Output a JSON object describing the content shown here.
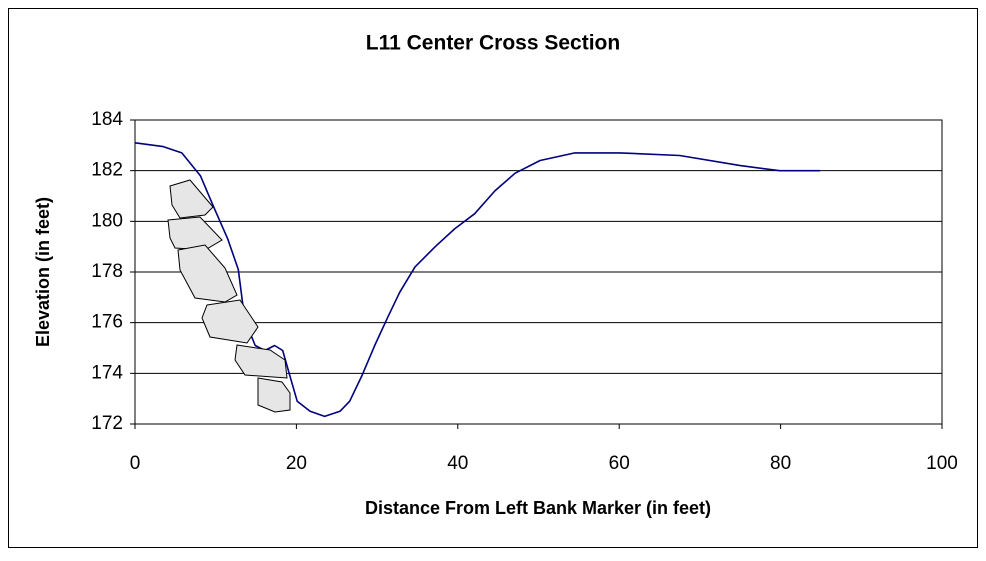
{
  "chart_data": {
    "type": "line",
    "title": "L11 Center Cross Section",
    "x_label": "Distance From Left Bank Marker (in feet)",
    "y_label": "Elevation (in feet)",
    "xlim": [
      0,
      100
    ],
    "xticks": [
      0,
      20,
      40,
      60,
      80,
      100
    ],
    "ylim": [
      172,
      184
    ],
    "yticks": [
      172,
      174,
      176,
      178,
      180,
      182,
      184
    ],
    "grid": true,
    "series": [
      {
        "color": "#000080",
        "x": [
          0,
          3.5,
          5.8,
          8.1,
          9.7,
          11.5,
          12.8,
          13.6,
          14.9,
          16.1,
          17.3,
          18.3,
          19.2,
          20.1,
          21.7,
          23.5,
          25.4,
          26.6,
          28.1,
          29.7,
          31.3,
          32.8,
          34.7,
          37.2,
          39.6,
          42.1,
          44.6,
          47.1,
          50.2,
          54.5,
          60.1,
          67.5,
          75.0,
          79.9,
          84.9
        ],
        "values": [
          183.1,
          182.95,
          182.7,
          181.8,
          180.6,
          179.3,
          178.1,
          176.1,
          175.1,
          174.9,
          175.1,
          174.9,
          173.9,
          172.9,
          172.5,
          172.3,
          172.5,
          172.9,
          173.9,
          175.1,
          176.2,
          177.2,
          178.2,
          179.0,
          179.7,
          180.3,
          181.2,
          181.9,
          182.4,
          182.7,
          182.7,
          182.6,
          182.2,
          182.0,
          182.0
        ]
      }
    ]
  }
}
